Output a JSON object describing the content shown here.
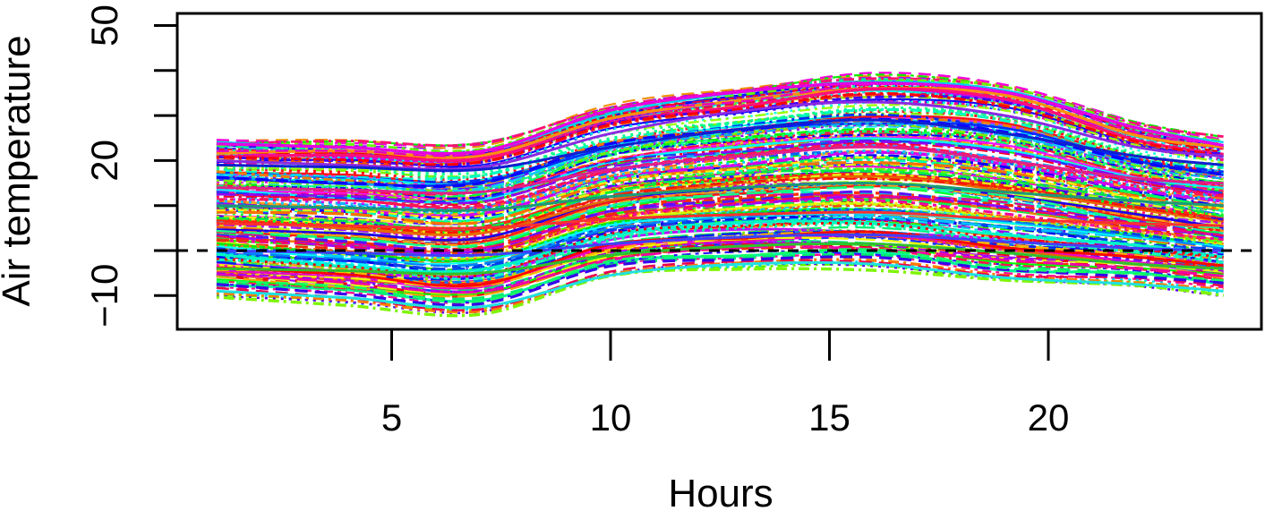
{
  "chart_data": {
    "type": "line",
    "title": "",
    "xlabel": "Hours",
    "ylabel": "Air temperature",
    "xlim": [
      1,
      24
    ],
    "ylim": [
      -10,
      50
    ],
    "x_ticks": [
      5,
      10,
      15,
      20
    ],
    "y_tick_marks": [
      -10,
      0,
      10,
      20,
      30,
      40,
      50
    ],
    "y_tick_labels": [
      {
        "value": -10,
        "label": "−10"
      },
      {
        "value": 20,
        "label": "20"
      },
      {
        "value": 50,
        "label": "50"
      }
    ],
    "reference_line": {
      "y": 0,
      "style": "dashed",
      "color": "#000000"
    },
    "grid": false,
    "legend": "none",
    "series_count": 220,
    "line_styles": [
      "solid",
      "dashed",
      "dotted",
      "dotdash",
      "longdash",
      "twodash"
    ],
    "palette": "rainbow",
    "x": [
      1,
      4,
      7,
      10,
      13,
      16,
      19,
      22,
      24
    ],
    "envelope_upper": [
      24.5,
      24,
      23.5,
      32,
      36,
      39,
      37,
      28,
      25
    ],
    "envelope_lower": [
      -9,
      -11,
      -13,
      -5,
      -3,
      -3,
      -6,
      -7,
      -9
    ],
    "representative_series": [
      {
        "values": [
          20,
          19,
          18.5,
          26,
          31,
          33,
          30,
          23,
          21
        ]
      },
      {
        "values": [
          19,
          18.5,
          18,
          23,
          27,
          29,
          26,
          21,
          19
        ]
      },
      {
        "values": [
          14,
          13.5,
          13,
          18,
          21,
          23,
          20,
          16,
          15
        ]
      },
      {
        "values": [
          10,
          9.5,
          9,
          12,
          14,
          15,
          13,
          11,
          10
        ]
      },
      {
        "values": [
          6,
          5.5,
          5,
          7,
          8,
          8.5,
          7,
          6,
          5.5
        ]
      },
      {
        "values": [
          0,
          -0.5,
          -1,
          1.5,
          3,
          3.5,
          2,
          0.5,
          0
        ]
      },
      {
        "values": [
          -4,
          -4.5,
          -5,
          -1,
          1,
          1.5,
          -0.5,
          -3,
          -4
        ]
      },
      {
        "values": [
          -9,
          -10.5,
          -12.5,
          -5.5,
          -3,
          -3,
          -6,
          -7.5,
          -9
        ]
      }
    ]
  }
}
